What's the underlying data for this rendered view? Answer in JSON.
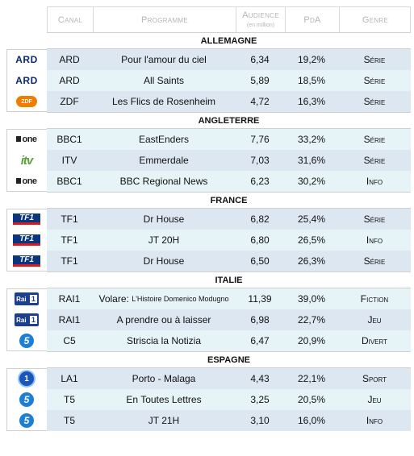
{
  "headers": {
    "canal": "Canal",
    "programme": "Programme",
    "audience": "Audience",
    "audience_sub": "(en million)",
    "poa": "PdA",
    "genre": "Genre"
  },
  "sections": [
    {
      "country": "ALLEMAGNE",
      "rows": [
        {
          "logo": "ARD",
          "canal": "ARD",
          "programme": "Pour l'amour du ciel",
          "audience": "6,34",
          "poa": "19,2%",
          "genre": "Série"
        },
        {
          "logo": "ARD",
          "canal": "ARD",
          "programme": "All Saints",
          "audience": "5,89",
          "poa": "18,5%",
          "genre": "Série"
        },
        {
          "logo": "ZDF",
          "canal": "ZDF",
          "programme": "Les Flics de Rosenheim",
          "audience": "4,72",
          "poa": "16,3%",
          "genre": "Série"
        }
      ]
    },
    {
      "country": "ANGLETERRE",
      "rows": [
        {
          "logo": "one",
          "canal": "BBC1",
          "programme": "EastEnders",
          "audience": "7,76",
          "poa": "33,2%",
          "genre": "Série"
        },
        {
          "logo": "itv",
          "canal": "ITV",
          "programme": "Emmerdale",
          "audience": "7,03",
          "poa": "31,6%",
          "genre": "Série"
        },
        {
          "logo": "one",
          "canal": "BBC1",
          "programme": "BBC Regional News",
          "audience": "6,23",
          "poa": "30,2%",
          "genre": "Info"
        }
      ]
    },
    {
      "country": "FRANCE",
      "rows": [
        {
          "logo": "TF1",
          "canal": "TF1",
          "programme": "Dr House",
          "audience": "6,82",
          "poa": "25,4%",
          "genre": "Série"
        },
        {
          "logo": "TF1",
          "canal": "TF1",
          "programme": "JT 20H",
          "audience": "6,80",
          "poa": "26,5%",
          "genre": "Info"
        },
        {
          "logo": "TF1",
          "canal": "TF1",
          "programme": "Dr House",
          "audience": "6,50",
          "poa": "26,3%",
          "genre": "Série"
        }
      ]
    },
    {
      "country": "ITALIE",
      "rows": [
        {
          "logo": "Rai 1",
          "canal": "RAI1",
          "programme": "Volare: ",
          "programme_small": "L'Histoire Domenico Modugno",
          "audience": "11,39",
          "poa": "39,0%",
          "genre": "Fiction"
        },
        {
          "logo": "Rai 1",
          "canal": "RAI1",
          "programme": "A prendre ou à laisser",
          "audience": "6,98",
          "poa": "22,7%",
          "genre": "Jeu"
        },
        {
          "logo": "5",
          "canal": "C5",
          "programme": "Striscia la Notizia",
          "audience": "6,47",
          "poa": "20,9%",
          "genre": "Divert"
        }
      ]
    },
    {
      "country": "ESPAGNE",
      "rows": [
        {
          "logo": "1",
          "canal": "LA1",
          "programme": "Porto - Malaga",
          "audience": "4,43",
          "poa": "22,1%",
          "genre": "Sport"
        },
        {
          "logo": "5",
          "canal": "T5",
          "programme": "En Toutes Lettres",
          "audience": "3,25",
          "poa": "20,5%",
          "genre": "Jeu"
        },
        {
          "logo": "5",
          "canal": "T5",
          "programme": "JT 21H",
          "audience": "3,10",
          "poa": "16,0%",
          "genre": "Info"
        }
      ]
    }
  ]
}
